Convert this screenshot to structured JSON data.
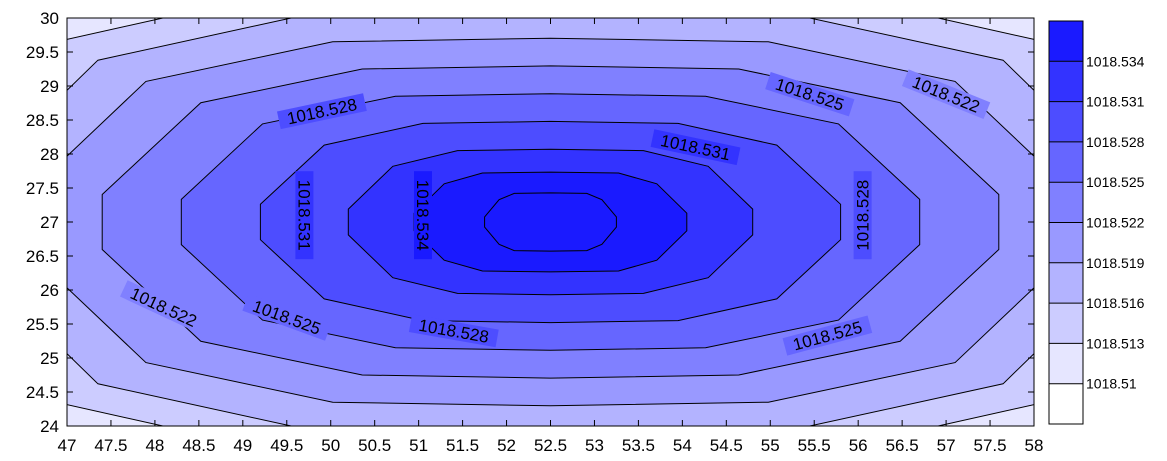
{
  "chart_data": {
    "type": "contour",
    "title": "",
    "xlabel": "",
    "ylabel": "",
    "xlim": [
      47,
      58
    ],
    "ylim": [
      24,
      30
    ],
    "x_ticks": [
      "47",
      "47.5",
      "48",
      "48.5",
      "49",
      "49.5",
      "50",
      "50.5",
      "51",
      "51.5",
      "52",
      "52.5",
      "53",
      "53.5",
      "54",
      "54.5",
      "55",
      "55.5",
      "56",
      "56.5",
      "57",
      "57.5",
      "58"
    ],
    "y_ticks": [
      "24",
      "24.5",
      "25",
      "25.5",
      "26",
      "26.5",
      "27",
      "27.5",
      "28",
      "28.5",
      "29",
      "29.5",
      "30"
    ],
    "peak": {
      "x": 52.5,
      "y": 27,
      "value": 1018.536
    },
    "contour_levels": [
      1018.51,
      1018.513,
      1018.516,
      1018.519,
      1018.522,
      1018.525,
      1018.528,
      1018.531,
      1018.534
    ],
    "fill_colors": [
      "#ffffff",
      "#e6e6ff",
      "#ccccff",
      "#b3b3ff",
      "#9999ff",
      "#8080ff",
      "#6666ff",
      "#4d4dff",
      "#3333ff",
      "#1a1aff"
    ],
    "colorbar_labels": [
      "1018.534",
      "1018.531",
      "1018.528",
      "1018.525",
      "1018.522",
      "1018.519",
      "1018.516",
      "1018.513",
      "1018.51"
    ],
    "contour_labels": [
      {
        "text": "1018.528",
        "x": 49.9,
        "y": 28.63
      },
      {
        "text": "1018.525",
        "x": 55.45,
        "y": 28.88
      },
      {
        "text": "1018.522",
        "x": 57.0,
        "y": 28.88
      },
      {
        "text": "1018.531",
        "x": 54.15,
        "y": 28.1
      },
      {
        "text": "1018.531",
        "x": 49.7,
        "y": 27.1
      },
      {
        "text": "1018.534",
        "x": 51.05,
        "y": 27.1
      },
      {
        "text": "1018.528",
        "x": 56.05,
        "y": 27.1
      },
      {
        "text": "1018.522",
        "x": 48.1,
        "y": 25.75
      },
      {
        "text": "1018.525",
        "x": 49.5,
        "y": 25.6
      },
      {
        "text": "1018.528",
        "x": 51.4,
        "y": 25.4
      },
      {
        "text": "1018.525",
        "x": 55.65,
        "y": 25.33
      }
    ]
  }
}
